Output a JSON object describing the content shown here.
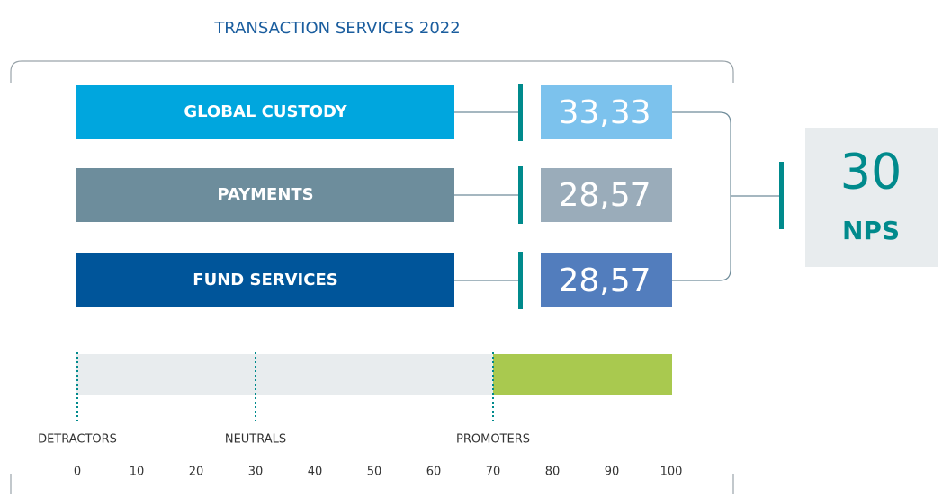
{
  "title": "TRANSACTION SERVICES 2022",
  "rows": [
    {
      "label": "GLOBAL CUSTODY",
      "score": "33,33",
      "bar_color": "#00a6de",
      "score_color": "#7cc2ed"
    },
    {
      "label": "PAYMENTS",
      "score": "28,57",
      "bar_color": "#6d8d9c",
      "score_color": "#9aacba"
    },
    {
      "label": "FUND SERVICES",
      "score": "28,57",
      "bar_color": "#00559a",
      "score_color": "#527dbd"
    }
  ],
  "total": {
    "value": "30",
    "unit": "NPS"
  },
  "scale": {
    "lim": [
      0,
      100
    ],
    "ticks": [
      0,
      10,
      20,
      30,
      40,
      50,
      60,
      70,
      80,
      90,
      100
    ],
    "zones": [
      {
        "label": "DETRACTORS",
        "value": 0
      },
      {
        "label": "NEUTRALS",
        "value": 30
      },
      {
        "label": "PROMOTERS",
        "value": 70
      }
    ],
    "highlight_zone": 2,
    "highlight_color": "#a9c94f"
  }
}
